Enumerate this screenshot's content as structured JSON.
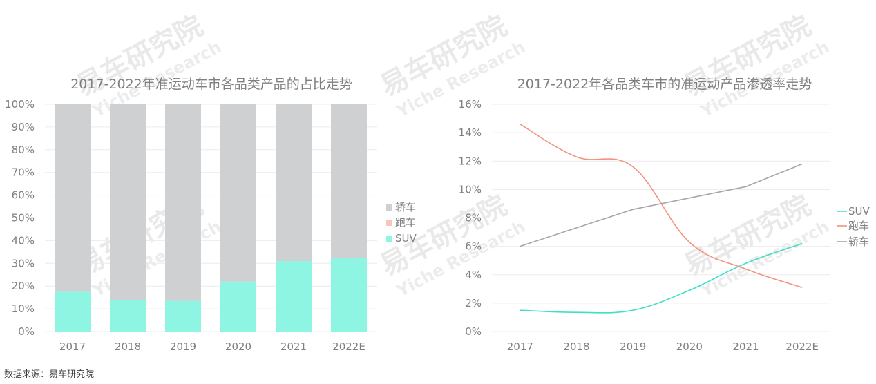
{
  "source_text": "数据来源：易车研究院",
  "watermark": {
    "cn": "易车研究院",
    "en": "Yiche Research"
  },
  "colors": {
    "suv": "#8ef5e3",
    "sports": "#f7c6ba",
    "sedan": "#cfd0d2",
    "suv_line": "#3fe0c8",
    "sports_line": "#f2937f",
    "sedan_line": "#a6a6a6"
  },
  "chart_data": [
    {
      "type": "bar",
      "stacked": true,
      "title": "2017-2022年准运动车市各品类产品的占比走势",
      "categories": [
        "2017",
        "2018",
        "2019",
        "2020",
        "2021",
        "2022E"
      ],
      "y_ticks": [
        "0%",
        "10%",
        "20%",
        "30%",
        "40%",
        "50%",
        "60%",
        "70%",
        "80%",
        "90%",
        "100%"
      ],
      "ylim": [
        0,
        100
      ],
      "series": [
        {
          "name": "SUV",
          "values": [
            17.5,
            14,
            13.5,
            22,
            31,
            32.5
          ]
        },
        {
          "name": "跑车",
          "values": [
            0,
            0,
            0,
            0,
            0,
            0
          ]
        },
        {
          "name": "轿车",
          "values": [
            82.5,
            86,
            86.5,
            78,
            69,
            67.5
          ]
        }
      ],
      "legend": [
        "轿车",
        "跑车",
        "SUV"
      ],
      "legend_position": "right"
    },
    {
      "type": "line",
      "title": "2017-2022年各品类车市的准运动产品渗透率走势",
      "categories": [
        "2017",
        "2018",
        "2019",
        "2020",
        "2021",
        "2022E"
      ],
      "y_ticks": [
        "0%",
        "2%",
        "4%",
        "6%",
        "8%",
        "10%",
        "12%",
        "14%",
        "16%"
      ],
      "ylim": [
        0,
        16
      ],
      "series": [
        {
          "name": "SUV",
          "values": [
            1.5,
            1.35,
            1.5,
            2.9,
            4.8,
            6.2
          ]
        },
        {
          "name": "跑车",
          "values": [
            14.6,
            12.3,
            11.6,
            6.3,
            4.4,
            3.1
          ]
        },
        {
          "name": "轿车",
          "values": [
            6.0,
            7.3,
            8.6,
            9.4,
            10.2,
            11.8
          ]
        }
      ],
      "legend": [
        "SUV",
        "跑车",
        "轿车"
      ],
      "legend_position": "right"
    }
  ]
}
